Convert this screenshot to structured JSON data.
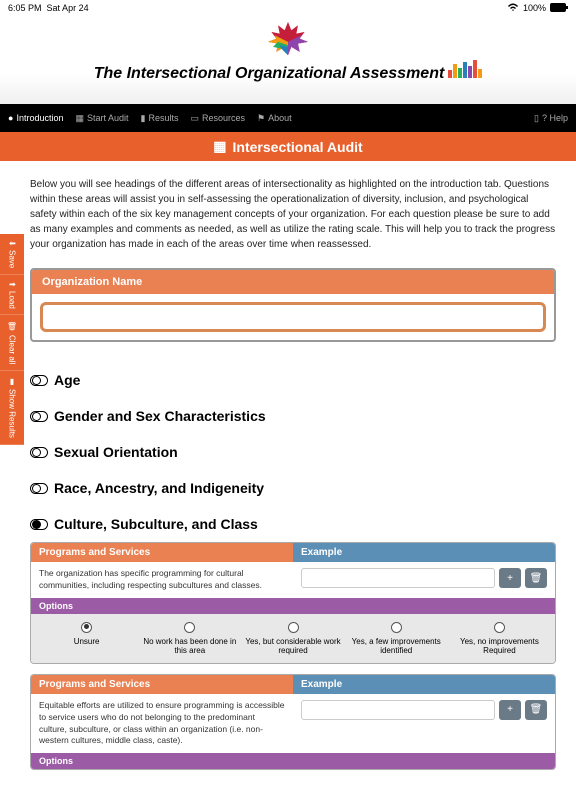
{
  "status": {
    "time": "6:05 PM",
    "date": "Sat Apr 24",
    "battery": "100%"
  },
  "header": {
    "title": "The Intersectional Organizational Assessment"
  },
  "nav": {
    "items": [
      {
        "label": "Introduction",
        "icon": "●"
      },
      {
        "label": "Start Audit",
        "icon": "▦"
      },
      {
        "label": "Results",
        "icon": "▮"
      },
      {
        "label": "Resources",
        "icon": "▭"
      },
      {
        "label": "About",
        "icon": "⚑"
      }
    ],
    "help": "? Help"
  },
  "banner": "Intersectional Audit",
  "sidetabs": [
    {
      "label": "Save",
      "icon": "⬇"
    },
    {
      "label": "Load",
      "icon": "⬆"
    },
    {
      "label": "Clear all",
      "icon": "🗑"
    },
    {
      "label": "Show Results",
      "icon": "▮"
    }
  ],
  "intro": "Below you will see headings of the different areas of intersectionality as highlighted on the introduction tab. Questions within these areas will assist you in self-assessing the operationalization of diversity, inclusion, and psychological safety within each of the six key management concepts of your organization. For each question please be sure to add as many examples and comments as needed, as well as utilize the rating scale. This will help you to track the progress your organization has made in each of the areas over time when reassessed.",
  "org_name": {
    "label": "Organization Name",
    "value": ""
  },
  "categories": [
    {
      "label": "Age",
      "open": false
    },
    {
      "label": "Gender and Sex Characteristics",
      "open": false
    },
    {
      "label": "Sexual Orientation",
      "open": false
    },
    {
      "label": "Race, Ancestry, and Indigeneity",
      "open": false
    },
    {
      "label": "Culture, Subculture, and Class",
      "open": true
    }
  ],
  "questions": [
    {
      "section": "Programs and Services",
      "text": "The organization has specific programming for cultural communities, including respecting subcultures and classes.",
      "example_label": "Example"
    },
    {
      "section": "Programs and Services",
      "text": "Equitable efforts are utilized to ensure programming is accessible to service users who do not belonging to the predominant culture, subculture, or class within an organization (i.e. non-western cultures, middle class, caste).",
      "example_label": "Example"
    }
  ],
  "options_label": "Options",
  "options": [
    "Unsure",
    "No work has been done in this area",
    "Yes, but considerable work required",
    "Yes, a few improvements identified",
    "Yes, no improvements Required"
  ],
  "selected_option": 0,
  "colors": {
    "orange": "#e8602c",
    "salmon": "#ea8152",
    "blue": "#5b8fb5",
    "purple": "#9b5ba5"
  }
}
